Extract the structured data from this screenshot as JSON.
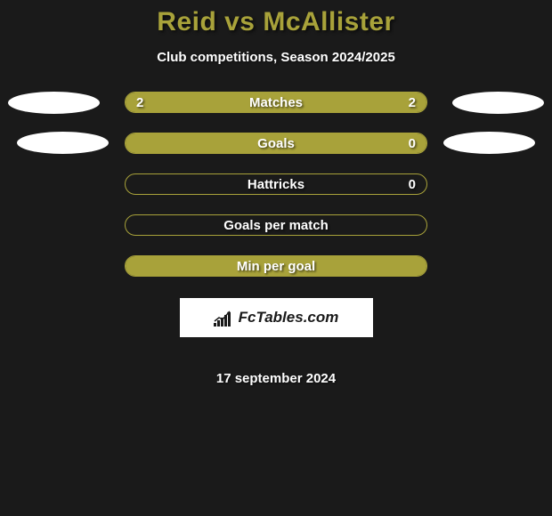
{
  "title": "Reid vs McAllister",
  "subtitle": "Club competitions, Season 2024/2025",
  "date": "17 september 2024",
  "logo": {
    "text": "FcTables.com"
  },
  "colors": {
    "background": "#1a1a1a",
    "accent": "#a8a23a",
    "text": "#ffffff",
    "logo_bg": "#ffffff",
    "logo_text": "#1a1a1a"
  },
  "stats": [
    {
      "label": "Matches",
      "left_value": "2",
      "right_value": "2",
      "left_fill_pct": 50,
      "right_fill_pct": 50,
      "fill_mode": "full"
    },
    {
      "label": "Goals",
      "left_value": "",
      "right_value": "0",
      "left_fill_pct": 100,
      "right_fill_pct": 0,
      "fill_mode": "full"
    },
    {
      "label": "Hattricks",
      "left_value": "",
      "right_value": "0",
      "left_fill_pct": 0,
      "right_fill_pct": 0,
      "fill_mode": "none"
    },
    {
      "label": "Goals per match",
      "left_value": "",
      "right_value": "",
      "left_fill_pct": 0,
      "right_fill_pct": 0,
      "fill_mode": "none"
    },
    {
      "label": "Min per goal",
      "left_value": "",
      "right_value": "",
      "left_fill_pct": 100,
      "right_fill_pct": 0,
      "fill_mode": "full"
    }
  ]
}
